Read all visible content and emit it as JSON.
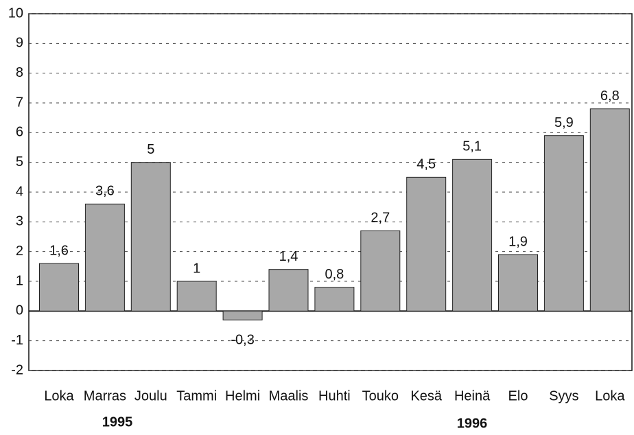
{
  "chart_data": {
    "type": "bar",
    "categories": [
      "Loka",
      "Marras",
      "Joulu",
      "Tammi",
      "Helmi",
      "Maalis",
      "Huhti",
      "Touko",
      "Kesä",
      "Heinä",
      "Elo",
      "Syys",
      "Loka"
    ],
    "values": [
      1.6,
      3.6,
      5,
      1,
      -0.3,
      1.4,
      0.8,
      2.7,
      4.5,
      5.1,
      1.9,
      5.9,
      6.8
    ],
    "value_labels": [
      "1,6",
      "3,6",
      "5",
      "1",
      "-0,3",
      "1,4",
      "0,8",
      "2,7",
      "4,5",
      "5,1",
      "1,9",
      "5,9",
      "6,8"
    ],
    "group_labels": [
      "1995",
      "1996"
    ],
    "color": "#a8a8a8",
    "ylim": [
      -2,
      10
    ],
    "yticks": [
      -2,
      -1,
      0,
      1,
      2,
      3,
      4,
      5,
      6,
      7,
      8,
      9,
      10
    ],
    "grid": true
  }
}
